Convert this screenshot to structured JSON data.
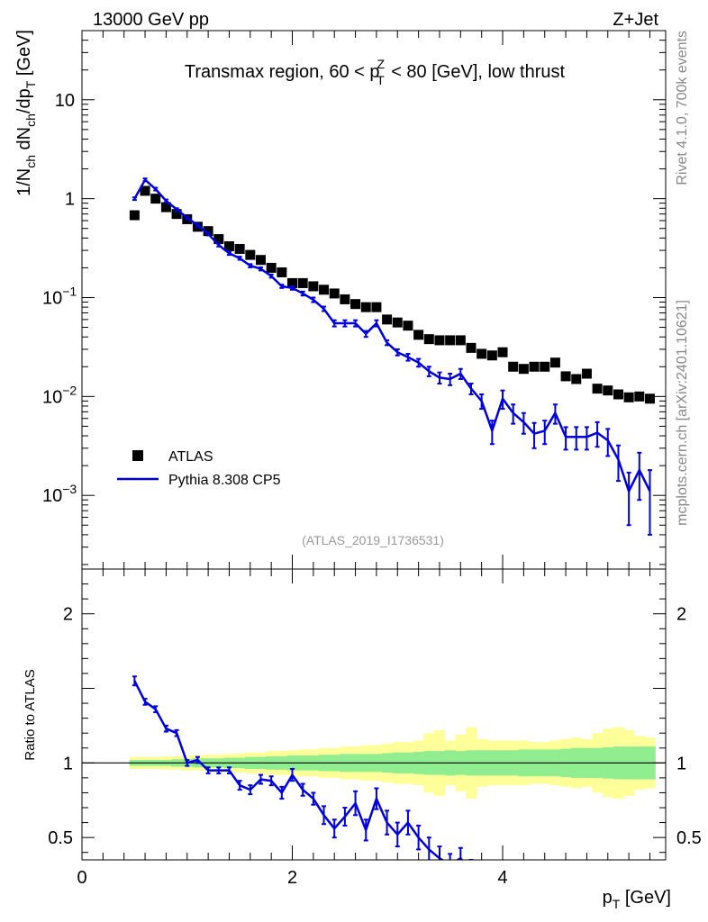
{
  "header": {
    "left": "13000 GeV pp",
    "right": "Z+Jet"
  },
  "side_labels": {
    "rivet": "Rivet 4.1.0,  700k events",
    "mcplots": "mcplots.cern.ch [arXiv:2401.10621]"
  },
  "chart_data": [
    {
      "type": "line",
      "title": "Transmax region, 60 < pTZ < 80 [GeV], low thrust",
      "title_parts": [
        "Transmax region, 60 < p",
        "Z",
        "T",
        " < 80 [GeV], low thrust"
      ],
      "ylabel": "1/N_ch dN_ch/dp_T [GeV]",
      "ylabel_parts": [
        "1/N",
        "ch",
        " dN",
        "ch",
        "/dp",
        "T",
        " [GeV]"
      ],
      "yscale": "log",
      "ylim": [
        0.00018,
        50
      ],
      "xlim": [
        0,
        5.55
      ],
      "yticks": [
        {
          "v": 10,
          "label": "10"
        },
        {
          "v": 1,
          "label": "1"
        },
        {
          "v": 0.1,
          "base": "10",
          "exp": "−1"
        },
        {
          "v": 0.01,
          "base": "10",
          "exp": "−2"
        },
        {
          "v": 0.001,
          "base": "10",
          "exp": "−3"
        }
      ],
      "legend_position": "lower-left",
      "watermark": "(ATLAS_2019_I1736531)",
      "x": [
        0.5,
        0.6,
        0.7,
        0.8,
        0.9,
        1.0,
        1.1,
        1.2,
        1.3,
        1.4,
        1.5,
        1.6,
        1.7,
        1.8,
        1.9,
        2.0,
        2.1,
        2.2,
        2.3,
        2.4,
        2.5,
        2.6,
        2.7,
        2.8,
        2.9,
        3.0,
        3.1,
        3.2,
        3.3,
        3.4,
        3.5,
        3.6,
        3.7,
        3.8,
        3.9,
        4.0,
        4.1,
        4.2,
        4.3,
        4.4,
        4.5,
        4.6,
        4.7,
        4.8,
        4.9,
        5.0,
        5.1,
        5.2,
        5.3,
        5.4
      ],
      "series": [
        {
          "name": "ATLAS",
          "marker": "square",
          "color": "#000000",
          "values": [
            0.68,
            1.2,
            1.0,
            0.82,
            0.7,
            0.62,
            0.52,
            0.47,
            0.39,
            0.33,
            0.31,
            0.27,
            0.24,
            0.2,
            0.18,
            0.14,
            0.14,
            0.13,
            0.12,
            0.11,
            0.096,
            0.086,
            0.08,
            0.08,
            0.06,
            0.056,
            0.052,
            0.042,
            0.038,
            0.037,
            0.037,
            0.037,
            0.031,
            0.027,
            0.026,
            0.028,
            0.02,
            0.019,
            0.02,
            0.02,
            0.022,
            0.016,
            0.015,
            0.017,
            0.012,
            0.0115,
            0.0105,
            0.0098,
            0.01,
            0.0095
          ]
        },
        {
          "name": "Pythia 8.308 CP5",
          "marker": "line",
          "color": "#0000dd",
          "values": [
            1.0,
            1.55,
            1.25,
            0.95,
            0.78,
            0.64,
            0.54,
            0.44,
            0.34,
            0.28,
            0.25,
            0.21,
            0.195,
            0.165,
            0.13,
            0.125,
            0.11,
            0.095,
            0.077,
            0.055,
            0.055,
            0.055,
            0.043,
            0.055,
            0.035,
            0.028,
            0.025,
            0.022,
            0.018,
            0.0155,
            0.015,
            0.017,
            0.012,
            0.009,
            0.0045,
            0.0095,
            0.0068,
            0.0055,
            0.0042,
            0.0045,
            0.0068,
            0.0039,
            0.0039,
            0.0039,
            0.0043,
            0.0036,
            0.0023,
            0.0011,
            0.0018,
            0.0011
          ],
          "errors": [
            0.03,
            0.05,
            0.04,
            0.03,
            0.02,
            0.02,
            0.02,
            0.015,
            0.012,
            0.01,
            0.009,
            0.008,
            0.007,
            0.006,
            0.005,
            0.005,
            0.005,
            0.005,
            0.004,
            0.004,
            0.004,
            0.004,
            0.003,
            0.004,
            0.002,
            0.002,
            0.002,
            0.002,
            0.002,
            0.002,
            0.002,
            0.002,
            0.0015,
            0.0015,
            0.0012,
            0.002,
            0.0015,
            0.0013,
            0.0012,
            0.0012,
            0.0015,
            0.001,
            0.001,
            0.001,
            0.0012,
            0.0011,
            0.0009,
            0.0006,
            0.0009,
            0.0007
          ]
        }
      ]
    },
    {
      "type": "line",
      "ylabel": "Ratio to ATLAS",
      "xlabel": "p_T [GeV]",
      "xlabel_parts": [
        "p",
        "T",
        " [GeV]"
      ],
      "ylim": [
        0.35,
        2.3
      ],
      "xlim": [
        0,
        5.55
      ],
      "yticks": [
        {
          "v": 2,
          "label": "2"
        },
        {
          "v": 1,
          "label": "1"
        },
        {
          "v": 0.5,
          "label": "0.5"
        }
      ],
      "xticks": [
        {
          "v": 0,
          "label": "0"
        },
        {
          "v": 2,
          "label": "2"
        },
        {
          "v": 4,
          "label": "4"
        }
      ],
      "reference_line": 1,
      "bands": {
        "green_color": "#90ee90",
        "yellow_color": "#ffff99",
        "x": [
          0.5,
          0.6,
          0.7,
          0.8,
          0.9,
          1.0,
          1.1,
          1.2,
          1.3,
          1.4,
          1.5,
          1.6,
          1.7,
          1.8,
          1.9,
          2.0,
          2.1,
          2.2,
          2.3,
          2.4,
          2.5,
          2.6,
          2.7,
          2.8,
          2.9,
          3.0,
          3.1,
          3.2,
          3.3,
          3.4,
          3.5,
          3.6,
          3.7,
          3.8,
          3.9,
          4.0,
          4.1,
          4.2,
          4.3,
          4.4,
          4.5,
          4.6,
          4.7,
          4.8,
          4.9,
          5.0,
          5.1,
          5.2,
          5.3,
          5.4
        ],
        "green": [
          0.02,
          0.02,
          0.02,
          0.02,
          0.025,
          0.025,
          0.03,
          0.03,
          0.03,
          0.035,
          0.035,
          0.04,
          0.04,
          0.045,
          0.045,
          0.05,
          0.05,
          0.05,
          0.055,
          0.055,
          0.06,
          0.06,
          0.06,
          0.06,
          0.065,
          0.07,
          0.07,
          0.075,
          0.08,
          0.08,
          0.085,
          0.08,
          0.085,
          0.085,
          0.085,
          0.085,
          0.085,
          0.09,
          0.09,
          0.09,
          0.09,
          0.095,
          0.1,
          0.1,
          0.1,
          0.105,
          0.11,
          0.11,
          0.11,
          0.11
        ],
        "yellow": [
          0.04,
          0.04,
          0.04,
          0.045,
          0.045,
          0.05,
          0.05,
          0.055,
          0.055,
          0.06,
          0.065,
          0.07,
          0.07,
          0.08,
          0.08,
          0.085,
          0.09,
          0.09,
          0.1,
          0.1,
          0.11,
          0.11,
          0.12,
          0.12,
          0.13,
          0.14,
          0.14,
          0.15,
          0.2,
          0.22,
          0.15,
          0.19,
          0.24,
          0.16,
          0.15,
          0.15,
          0.15,
          0.15,
          0.14,
          0.14,
          0.15,
          0.16,
          0.17,
          0.16,
          0.2,
          0.23,
          0.24,
          0.22,
          0.18,
          0.17
        ]
      },
      "series": [
        {
          "name": "Pythia 8.308 CP5 / ATLAS",
          "color": "#0000dd",
          "x": [
            0.5,
            0.6,
            0.7,
            0.8,
            0.9,
            1.0,
            1.1,
            1.2,
            1.3,
            1.4,
            1.5,
            1.6,
            1.7,
            1.8,
            1.9,
            2.0,
            2.1,
            2.2,
            2.3,
            2.4,
            2.5,
            2.6,
            2.7,
            2.8,
            2.9,
            3.0,
            3.1,
            3.2,
            3.3,
            3.4,
            3.5,
            3.6,
            3.7
          ],
          "values": [
            1.55,
            1.41,
            1.36,
            1.23,
            1.2,
            1.0,
            1.02,
            0.95,
            0.95,
            0.95,
            0.85,
            0.82,
            0.89,
            0.88,
            0.8,
            0.92,
            0.82,
            0.76,
            0.65,
            0.56,
            0.64,
            0.73,
            0.55,
            0.76,
            0.6,
            0.52,
            0.6,
            0.5,
            0.42,
            0.36,
            0.32,
            0.36,
            0.28
          ],
          "errors": [
            0.03,
            0.02,
            0.02,
            0.02,
            0.02,
            0.02,
            0.02,
            0.02,
            0.02,
            0.02,
            0.03,
            0.03,
            0.03,
            0.03,
            0.04,
            0.04,
            0.04,
            0.04,
            0.06,
            0.06,
            0.06,
            0.08,
            0.07,
            0.07,
            0.08,
            0.08,
            0.08,
            0.08,
            0.08,
            0.08,
            0.07,
            0.07,
            0.07
          ]
        }
      ]
    }
  ]
}
